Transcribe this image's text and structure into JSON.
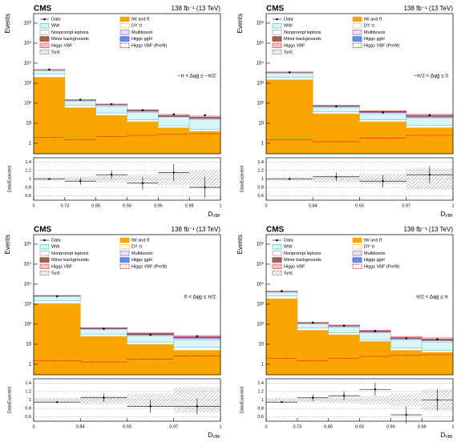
{
  "chart_data": [
    {
      "type": "stacked-histogram",
      "experiment": "CMS",
      "lumi": "138 fb⁻¹ (13 TeV)",
      "annotation": "−π < Δφjj ≤ −π/2",
      "y_label": "Events",
      "ratio_label": "Data/Expected",
      "x_label": {
        "main": "D",
        "sub": "VBF"
      },
      "log_y": true,
      "bin_edges": [
        "0",
        "0.73",
        "0.85",
        "0.93",
        "0.96",
        "0.98",
        "1"
      ],
      "ylim": [
        0.3,
        3000000
      ],
      "yticks": [
        1,
        10,
        {
          "value": 100,
          "label": "10²"
        },
        {
          "value": 1000,
          "label": "10³"
        },
        {
          "value": 10000,
          "label": "10⁴"
        },
        {
          "value": 100000,
          "label": "10⁵"
        },
        {
          "value": 1000000,
          "label": "10⁶"
        }
      ],
      "series": [
        {
          "name": "tW and tt̄",
          "color": "#f9a602",
          "edge": "#f9a602",
          "values": [
            2000,
            60,
            25,
            12,
            6,
            4
          ]
        },
        {
          "name": "DY ττ",
          "color": "#ffffff",
          "edge": "#f3c46b",
          "values": [
            800,
            20,
            8,
            3,
            1.5,
            1
          ]
        },
        {
          "name": "WW",
          "color": "#d8f6f6",
          "edge": "#5fcfcf",
          "values": [
            1500,
            50,
            40,
            20,
            12,
            10
          ]
        },
        {
          "name": "Nonprompt leptons",
          "color": "#ffffff",
          "edge": "#aaaaaa",
          "values": [
            300,
            10,
            8,
            4,
            2,
            2
          ]
        },
        {
          "name": "Multiboson",
          "color": "#e8e0f8",
          "edge": "#9a7fd0",
          "values": [
            50,
            3,
            3,
            2,
            1,
            1
          ]
        },
        {
          "name": "Minor backgrounds",
          "color": "#a9604c",
          "edge": "#7a3b2b",
          "values": [
            100,
            4,
            3,
            2,
            1,
            1
          ]
        },
        {
          "name": "Higgs ggH",
          "color": "#5f8ff0",
          "edge": "#3a63c0",
          "values": [
            30,
            2,
            2,
            2,
            1,
            1
          ]
        },
        {
          "name": "Higgs VBF",
          "color": "#f4c4c4",
          "edge": "#dd6666",
          "values": [
            3,
            2,
            3,
            3,
            3,
            3
          ]
        }
      ],
      "data": {
        "name": "Data",
        "values": [
          4800,
          150,
          90,
          45,
          28,
          25
        ]
      },
      "prefit": {
        "name": "Higgs VBF (Prefit)",
        "color": "#ff0000",
        "values": [
          2,
          1.5,
          2.2,
          2.5,
          2.8,
          3
        ]
      },
      "syst_name": "Syst.",
      "ratio": {
        "values": [
          1.0,
          0.95,
          1.1,
          0.9,
          1.15,
          0.8
        ],
        "errors": [
          0.02,
          0.08,
          0.1,
          0.15,
          0.2,
          0.25
        ],
        "syst": [
          0.05,
          0.06,
          0.08,
          0.1,
          0.15,
          0.2
        ],
        "ylim": [
          0.5,
          1.5
        ],
        "yticks": [
          0.6,
          0.8,
          1,
          1.2,
          1.4
        ]
      }
    },
    {
      "type": "stacked-histogram",
      "experiment": "CMS",
      "lumi": "138 fb⁻¹ (13 TeV)",
      "annotation": "−π/2 < Δφjj ≤ 0",
      "y_label": "Events",
      "ratio_label": "Data/Expected",
      "x_label": {
        "main": "D",
        "sub": "VBF"
      },
      "log_y": true,
      "bin_edges": [
        "0",
        "0.84",
        "0.93",
        "0.97",
        "1"
      ],
      "ylim": [
        0.3,
        3000000
      ],
      "yticks": [
        1,
        10,
        {
          "value": 100,
          "label": "10²"
        },
        {
          "value": 1000,
          "label": "10³"
        },
        {
          "value": 10000,
          "label": "10⁴"
        },
        {
          "value": 100000,
          "label": "10⁵"
        },
        {
          "value": 1000000,
          "label": "10⁶"
        }
      ],
      "series": [
        {
          "name": "tW and tt̄",
          "color": "#f9a602",
          "edge": "#f9a602",
          "values": [
            1500,
            30,
            12,
            6
          ]
        },
        {
          "name": "DY ττ",
          "color": "#ffffff",
          "edge": "#f3c46b",
          "values": [
            500,
            8,
            3,
            2
          ]
        },
        {
          "name": "WW",
          "color": "#d8f6f6",
          "edge": "#5fcfcf",
          "values": [
            1200,
            25,
            15,
            10
          ]
        },
        {
          "name": "Nonprompt leptons",
          "color": "#ffffff",
          "edge": "#aaaaaa",
          "values": [
            250,
            6,
            4,
            2
          ]
        },
        {
          "name": "Multiboson",
          "color": "#e8e0f8",
          "edge": "#9a7fd0",
          "values": [
            40,
            3,
            2,
            2
          ]
        },
        {
          "name": "Minor backgrounds",
          "color": "#a9604c",
          "edge": "#7a3b2b",
          "values": [
            80,
            3,
            2,
            1
          ]
        },
        {
          "name": "Higgs ggH",
          "color": "#5f8ff0",
          "edge": "#3a63c0",
          "values": [
            25,
            2,
            2,
            2
          ]
        },
        {
          "name": "Higgs VBF",
          "color": "#f4c4c4",
          "edge": "#dd6666",
          "values": [
            2,
            1.5,
            2,
            3
          ]
        }
      ],
      "data": {
        "name": "Data",
        "values": [
          3500,
          70,
          35,
          25
        ]
      },
      "prefit": {
        "name": "Higgs VBF (Prefit)",
        "color": "#ff0000",
        "values": [
          1.5,
          1.2,
          1.8,
          2.5
        ]
      },
      "syst_name": "Syst.",
      "ratio": {
        "values": [
          1.0,
          1.05,
          0.95,
          1.1
        ],
        "errors": [
          0.02,
          0.1,
          0.15,
          0.2
        ],
        "syst": [
          0.05,
          0.08,
          0.12,
          0.25
        ],
        "ylim": [
          0.5,
          1.5
        ],
        "yticks": [
          0.6,
          0.8,
          1,
          1.2,
          1.4
        ]
      }
    },
    {
      "type": "stacked-histogram",
      "experiment": "CMS",
      "lumi": "138 fb⁻¹ (13 TeV)",
      "annotation": "0 < Δφjj ≤ π/2",
      "y_label": "Events",
      "ratio_label": "Data/Expected",
      "x_label": {
        "main": "D",
        "sub": "VBF"
      },
      "log_y": true,
      "bin_edges": [
        "0",
        "0.84",
        "0.93",
        "0.97",
        "1"
      ],
      "ylim": [
        0.3,
        3000000
      ],
      "yticks": [
        1,
        10,
        {
          "value": 100,
          "label": "10²"
        },
        {
          "value": 1000,
          "label": "10³"
        },
        {
          "value": 10000,
          "label": "10⁴"
        },
        {
          "value": 100000,
          "label": "10⁵"
        },
        {
          "value": 1000000,
          "label": "10⁶"
        }
      ],
      "series": [
        {
          "name": "tW and tt̄",
          "color": "#f9a602",
          "edge": "#f9a602",
          "values": [
            1100,
            25,
            10,
            5
          ]
        },
        {
          "name": "DY ττ",
          "color": "#ffffff",
          "edge": "#f3c46b",
          "values": [
            400,
            7,
            3,
            2
          ]
        },
        {
          "name": "WW",
          "color": "#d8f6f6",
          "edge": "#5fcfcf",
          "values": [
            900,
            22,
            13,
            10
          ]
        },
        {
          "name": "Nonprompt leptons",
          "color": "#ffffff",
          "edge": "#aaaaaa",
          "values": [
            200,
            5,
            3,
            2
          ]
        },
        {
          "name": "Multiboson",
          "color": "#e8e0f8",
          "edge": "#9a7fd0",
          "values": [
            30,
            2,
            2,
            2
          ]
        },
        {
          "name": "Minor backgrounds",
          "color": "#a9604c",
          "edge": "#7a3b2b",
          "values": [
            60,
            3,
            2,
            1
          ]
        },
        {
          "name": "Higgs ggH",
          "color": "#5f8ff0",
          "edge": "#3a63c0",
          "values": [
            20,
            2,
            2,
            2
          ]
        },
        {
          "name": "Higgs VBF",
          "color": "#f4c4c4",
          "edge": "#dd6666",
          "values": [
            2,
            1.5,
            2,
            3
          ]
        }
      ],
      "data": {
        "name": "Data",
        "values": [
          2500,
          60,
          30,
          25
        ]
      },
      "prefit": {
        "name": "Higgs VBF (Prefit)",
        "color": "#ff0000",
        "values": [
          1.5,
          1.3,
          1.8,
          2.6
        ]
      },
      "syst_name": "Syst.",
      "ratio": {
        "values": [
          0.95,
          1.05,
          0.85,
          0.85
        ],
        "errors": [
          0.02,
          0.1,
          0.15,
          0.18
        ],
        "syst": [
          0.05,
          0.1,
          0.15,
          0.3
        ],
        "ylim": [
          0.5,
          1.5
        ],
        "yticks": [
          0.6,
          0.8,
          1,
          1.2,
          1.4
        ]
      }
    },
    {
      "type": "stacked-histogram",
      "experiment": "CMS",
      "lumi": "138 fb⁻¹ (13 TeV)",
      "annotation": "π/2 < Δφjj ≤ π",
      "y_label": "Events",
      "ratio_label": "Data/Expected",
      "x_label": {
        "main": "D",
        "sub": "VBF"
      },
      "log_y": true,
      "bin_edges": [
        "0",
        "0.73",
        "0.85",
        "0.93",
        "0.96",
        "0.98",
        "1"
      ],
      "ylim": [
        0.3,
        3000000
      ],
      "yticks": [
        1,
        10,
        {
          "value": 100,
          "label": "10²"
        },
        {
          "value": 1000,
          "label": "10³"
        },
        {
          "value": 10000,
          "label": "10⁴"
        },
        {
          "value": 100000,
          "label": "10⁵"
        },
        {
          "value": 1000000,
          "label": "10⁶"
        }
      ],
      "series": [
        {
          "name": "tW and tt̄",
          "color": "#f9a602",
          "edge": "#f9a602",
          "values": [
            1900,
            50,
            30,
            14,
            5,
            4
          ]
        },
        {
          "name": "DY ττ",
          "color": "#ffffff",
          "edge": "#f3c46b",
          "values": [
            700,
            15,
            8,
            3,
            1.5,
            1
          ]
        },
        {
          "name": "WW",
          "color": "#d8f6f6",
          "edge": "#5fcfcf",
          "values": [
            1400,
            40,
            35,
            20,
            10,
            8
          ]
        },
        {
          "name": "Nonprompt leptons",
          "color": "#ffffff",
          "edge": "#aaaaaa",
          "values": [
            300,
            8,
            7,
            4,
            2,
            2
          ]
        },
        {
          "name": "Multiboson",
          "color": "#e8e0f8",
          "edge": "#9a7fd0",
          "values": [
            50,
            3,
            3,
            2,
            1,
            1
          ]
        },
        {
          "name": "Minor backgrounds",
          "color": "#a9604c",
          "edge": "#7a3b2b",
          "values": [
            90,
            4,
            3,
            2,
            1,
            1
          ]
        },
        {
          "name": "Higgs ggH",
          "color": "#5f8ff0",
          "edge": "#3a63c0",
          "values": [
            30,
            2,
            2,
            2,
            1,
            1
          ]
        },
        {
          "name": "Higgs VBF",
          "color": "#f4c4c4",
          "edge": "#dd6666",
          "values": [
            3,
            2,
            3,
            3,
            3,
            3
          ]
        }
      ],
      "data": {
        "name": "Data",
        "values": [
          4500,
          120,
          85,
          45,
          20,
          18
        ]
      },
      "prefit": {
        "name": "Higgs VBF (Prefit)",
        "color": "#ff0000",
        "values": [
          2,
          1.5,
          2,
          2.5,
          2.8,
          3
        ]
      },
      "syst_name": "Syst.",
      "ratio": {
        "values": [
          0.95,
          1.05,
          1.1,
          1.25,
          0.65,
          1.0
        ],
        "errors": [
          0.02,
          0.08,
          0.1,
          0.15,
          0.2,
          0.25
        ],
        "syst": [
          0.05,
          0.06,
          0.08,
          0.1,
          0.15,
          0.25
        ],
        "ylim": [
          0.5,
          1.5
        ],
        "yticks": [
          0.6,
          0.8,
          1,
          1.2,
          1.4
        ]
      }
    }
  ]
}
